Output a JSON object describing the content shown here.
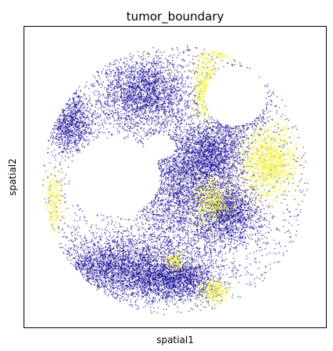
{
  "chart_data": {
    "type": "scatter",
    "title": "tumor_boundary",
    "xlabel": "spatial1",
    "ylabel": "spatial2",
    "xticks": [],
    "yticks": [],
    "xlim": [
      0,
      1
    ],
    "ylim": [
      0,
      1
    ],
    "y_inverted": true,
    "grid": false,
    "legend": "none",
    "point_size": "small",
    "point_alpha": 0.65,
    "colors": {
      "dominant": "#1e1496",
      "boundary": "#f2f23a",
      "frame": "#000000",
      "background": "#ffffff"
    },
    "series": [
      {
        "color": "#1e1496",
        "density_regions": [
          {
            "cx": 0.4,
            "cy": 0.22,
            "rx": 0.15,
            "ry": 0.12,
            "weight": 3.0
          },
          {
            "cx": 0.52,
            "cy": 0.55,
            "rx": 0.17,
            "ry": 0.24,
            "weight": 4.5
          },
          {
            "cx": 0.3,
            "cy": 0.8,
            "rx": 0.18,
            "ry": 0.1,
            "weight": 3.5
          },
          {
            "cx": 0.5,
            "cy": 0.84,
            "rx": 0.14,
            "ry": 0.07,
            "weight": 2.5
          },
          {
            "cx": 0.68,
            "cy": 0.62,
            "rx": 0.1,
            "ry": 0.1,
            "weight": 2.0
          },
          {
            "cx": 0.15,
            "cy": 0.32,
            "rx": 0.08,
            "ry": 0.1,
            "weight": 1.5
          },
          {
            "cx": 0.72,
            "cy": 0.26,
            "rx": 0.08,
            "ry": 0.12,
            "weight": 1.5
          },
          {
            "cx": 0.62,
            "cy": 0.42,
            "rx": 0.1,
            "ry": 0.1,
            "weight": 2.0
          }
        ]
      },
      {
        "color": "#f2f23a",
        "density_regions": [
          {
            "cx": 0.81,
            "cy": 0.45,
            "rx": 0.09,
            "ry": 0.12,
            "weight": 3.0
          },
          {
            "cx": 0.6,
            "cy": 0.2,
            "rx": 0.04,
            "ry": 0.1,
            "weight": 1.2
          },
          {
            "cx": 0.66,
            "cy": 0.08,
            "rx": 0.05,
            "ry": 0.03,
            "weight": 0.6
          },
          {
            "cx": 0.62,
            "cy": 0.58,
            "rx": 0.06,
            "ry": 0.07,
            "weight": 1.0
          },
          {
            "cx": 0.1,
            "cy": 0.58,
            "rx": 0.03,
            "ry": 0.1,
            "weight": 0.6
          },
          {
            "cx": 0.63,
            "cy": 0.88,
            "rx": 0.05,
            "ry": 0.04,
            "weight": 0.6
          },
          {
            "cx": 0.5,
            "cy": 0.78,
            "rx": 0.03,
            "ry": 0.03,
            "weight": 0.3
          }
        ]
      }
    ]
  }
}
